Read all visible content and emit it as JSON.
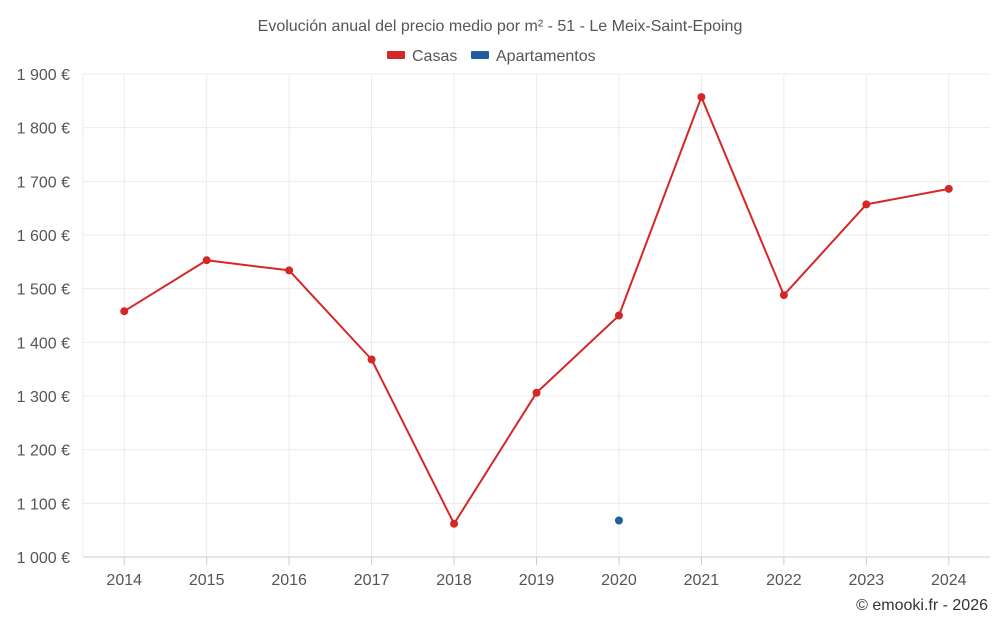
{
  "chart_data": {
    "type": "line",
    "title": "Evolución anual del precio medio por m² - 51 - Le Meix-Saint-Epoing",
    "categories": [
      "2014",
      "2015",
      "2016",
      "2017",
      "2018",
      "2019",
      "2020",
      "2021",
      "2022",
      "2023",
      "2024"
    ],
    "ylim": [
      1000,
      1900
    ],
    "yticks": [
      1000,
      1100,
      1200,
      1300,
      1400,
      1500,
      1600,
      1700,
      1800,
      1900
    ],
    "ytick_labels": [
      "1 000 €",
      "1 100 €",
      "1 200 €",
      "1 300 €",
      "1 400 €",
      "1 500 €",
      "1 600 €",
      "1 700 €",
      "1 800 €",
      "1 900 €"
    ],
    "grid": true,
    "legend_position": "top-center",
    "series": [
      {
        "name": "Casas",
        "color": "#d62728",
        "values": [
          1458,
          1553,
          1534,
          1368,
          1062,
          1306,
          1450,
          1857,
          1488,
          1657,
          1686
        ]
      },
      {
        "name": "Apartamentos",
        "color": "#1f5f9c",
        "values": [
          null,
          null,
          null,
          null,
          null,
          null,
          1068,
          null,
          null,
          null,
          null
        ]
      }
    ]
  },
  "credit": "© emooki.fr - 2026"
}
